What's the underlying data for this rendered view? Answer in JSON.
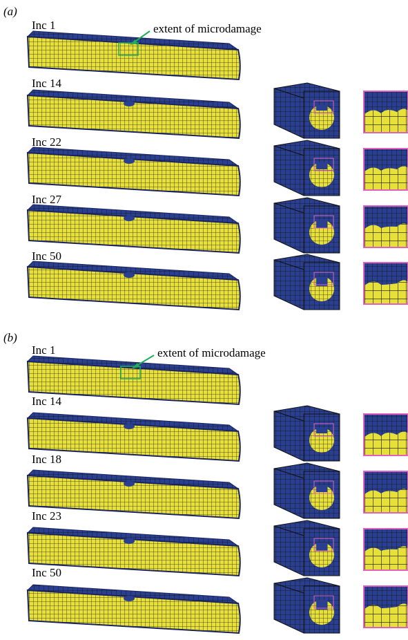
{
  "panels": [
    {
      "label": "(a)",
      "annotation": "extent of microdamage",
      "rows": [
        {
          "label": "Inc 1"
        },
        {
          "label": "Inc 14"
        },
        {
          "label": "Inc 22"
        },
        {
          "label": "Inc 27"
        },
        {
          "label": "Inc 50"
        }
      ]
    },
    {
      "label": "(b)",
      "annotation": "extent of microdamage",
      "rows": [
        {
          "label": "Inc 1"
        },
        {
          "label": "Inc 14"
        },
        {
          "label": "Inc 18"
        },
        {
          "label": "Inc 23"
        },
        {
          "label": "Inc 50"
        }
      ]
    }
  ]
}
